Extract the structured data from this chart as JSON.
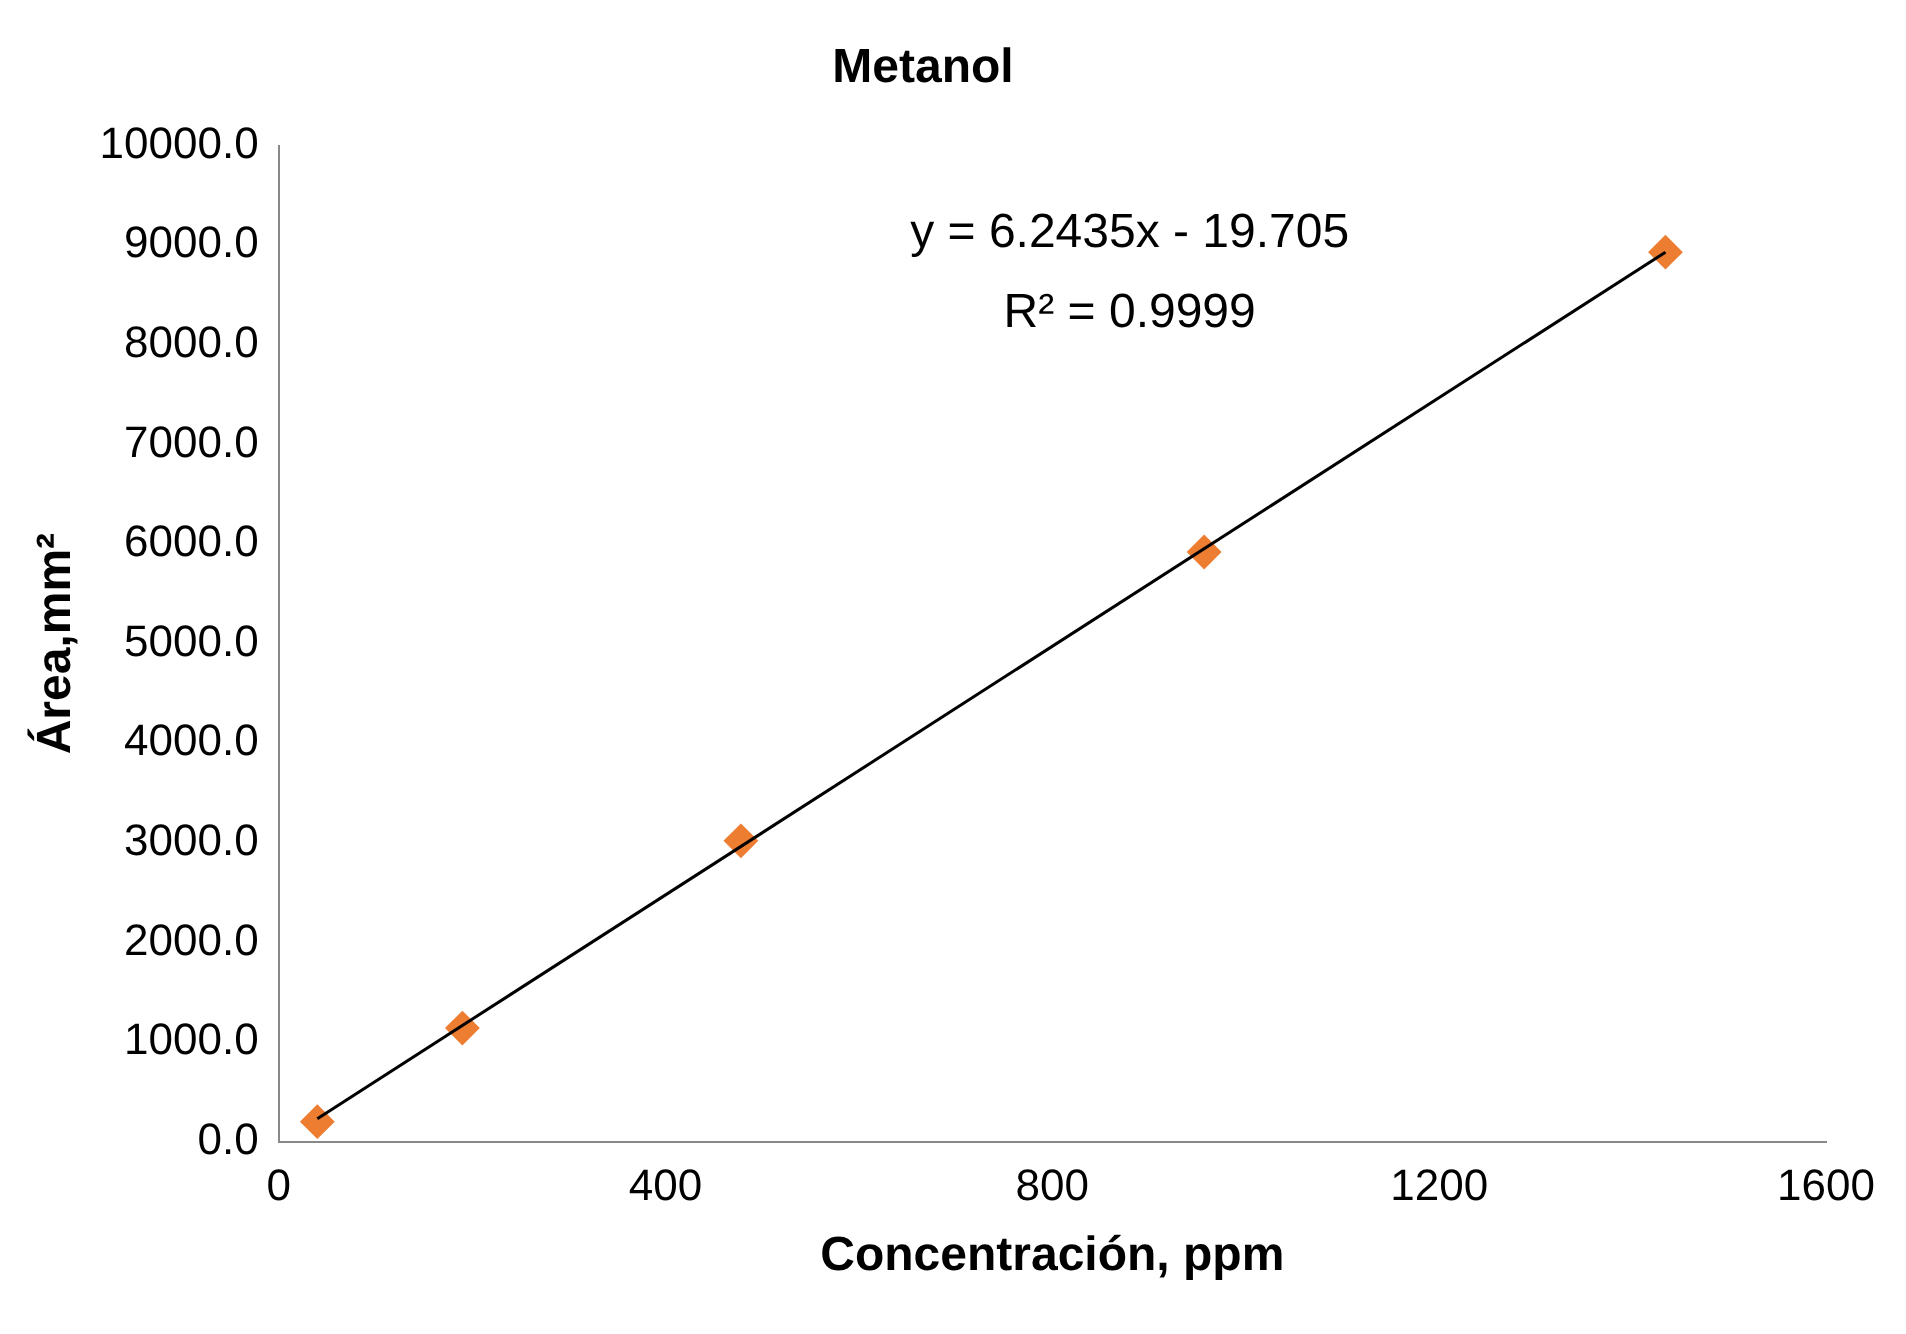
{
  "chart_data": {
    "type": "scatter",
    "title": "Metanol",
    "xlabel": "Concentración, ppm",
    "ylabel": "Área,mm²",
    "xlim": [
      0,
      1600
    ],
    "xticks": [
      0,
      400,
      800,
      1200,
      1600
    ],
    "ylim": [
      0,
      10000
    ],
    "yticks": [
      {
        "value": 0,
        "label": "0.0"
      },
      {
        "value": 1000,
        "label": "1000.0"
      },
      {
        "value": 2000,
        "label": "2000.0"
      },
      {
        "value": 3000,
        "label": "3000.0"
      },
      {
        "value": 4000,
        "label": "4000.0"
      },
      {
        "value": 5000,
        "label": "5000.0"
      },
      {
        "value": 6000,
        "label": "6000.0"
      },
      {
        "value": 7000,
        "label": "7000.0"
      },
      {
        "value": 8000,
        "label": "8000.0"
      },
      {
        "value": 9000,
        "label": "9000.0"
      },
      {
        "value": 10000,
        "label": "10000.0"
      }
    ],
    "grid": false,
    "legend": false,
    "marker": "diamond",
    "annotations": [
      "y = 6.2435x - 19.705",
      "R² = 0.9999"
    ],
    "series": [
      {
        "color": "#ed7d31",
        "x": [
          40,
          190,
          478,
          957,
          1434
        ],
        "values": [
          200,
          1140,
          3020,
          5920,
          8930
        ]
      },
      {
        "type": "line",
        "color": "#000000",
        "line_style": "solid",
        "marker": "none",
        "x": [
          40,
          1434
        ],
        "values": [
          230,
          8930
        ]
      }
    ]
  }
}
